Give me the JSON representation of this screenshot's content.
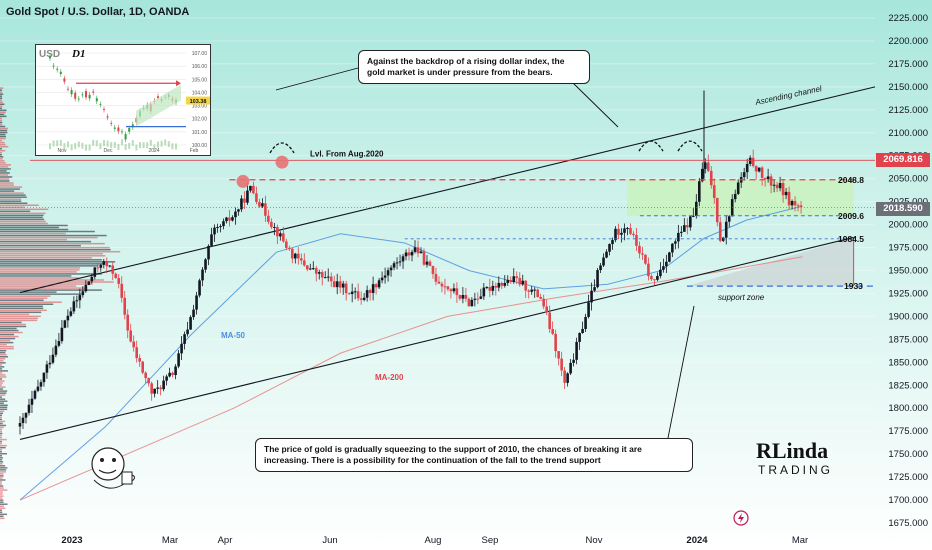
{
  "header": {
    "title": "Gold Spot / U.S. Dollar, 1D, OANDA"
  },
  "callouts": {
    "top": "Against the backdrop of a rising dollar index, the gold market is under pressure from the bears.",
    "bottom": "The price of gold is gradually squeezing to the support of 2010, the chances of breaking it are increasing. There is a possibility for the continuation of the fall to the trend support"
  },
  "badges": {
    "upper": "2069.816",
    "current": "2018.590"
  },
  "colors": {
    "up": "#131722",
    "down": "#e0434b",
    "ma50": "#4a90e2",
    "ma200": "#e88080",
    "channel": "#131722",
    "badge_upper": "#e0434b",
    "badge_current": "#6b6f78"
  },
  "inset": {
    "symbol": "USD",
    "timeframe": "D1",
    "price_ticks": [
      "107.00",
      "106.00",
      "105.00",
      "104.00",
      "103.00",
      "102.00",
      "101.00",
      "100.00"
    ],
    "time_ticks": [
      "Nov",
      "Dec",
      "2024",
      "Feb"
    ],
    "current_price": "103.38"
  },
  "logo": {
    "top": "RLinda",
    "bottom": "TRADING"
  },
  "chart_data": {
    "type": "candlestick",
    "title": "Gold Spot / U.S. Dollar, 1D, OANDA",
    "x_tick_labels": [
      "2023",
      "Mar",
      "Apr",
      "Jun",
      "Aug",
      "Sep",
      "Nov",
      "2024",
      "Mar"
    ],
    "y_tick_labels": [
      "2225.000",
      "2200.000",
      "2175.000",
      "2150.000",
      "2125.000",
      "2100.000",
      "2075.000",
      "2050.000",
      "2025.000",
      "2000.000",
      "1975.000",
      "1950.000",
      "1925.000",
      "1900.000",
      "1875.000",
      "1850.000",
      "1825.000",
      "1800.000",
      "1775.000",
      "1750.000",
      "1725.000",
      "1700.000",
      "1675.000"
    ],
    "ylim": [
      1670,
      2235
    ],
    "trajectory": [
      [
        0,
        1780
      ],
      [
        10,
        1830
      ],
      [
        22,
        1900
      ],
      [
        38,
        1960
      ],
      [
        45,
        1945
      ],
      [
        52,
        1870
      ],
      [
        62,
        1815
      ],
      [
        72,
        1840
      ],
      [
        80,
        1900
      ],
      [
        90,
        1990
      ],
      [
        100,
        2010
      ],
      [
        108,
        2040
      ],
      [
        118,
        2000
      ],
      [
        128,
        1965
      ],
      [
        140,
        1945
      ],
      [
        148,
        1935
      ],
      [
        160,
        1920
      ],
      [
        172,
        1950
      ],
      [
        185,
        1975
      ],
      [
        195,
        1940
      ],
      [
        210,
        1915
      ],
      [
        222,
        1935
      ],
      [
        232,
        1940
      ],
      [
        244,
        1920
      ],
      [
        250,
        1870
      ],
      [
        255,
        1825
      ],
      [
        262,
        1880
      ],
      [
        270,
        1945
      ],
      [
        278,
        1990
      ],
      [
        284,
        2000
      ],
      [
        290,
        1970
      ],
      [
        296,
        1935
      ],
      [
        306,
        1980
      ],
      [
        315,
        2010
      ],
      [
        320,
        2070
      ],
      [
        324,
        2040
      ],
      [
        328,
        1980
      ],
      [
        335,
        2040
      ],
      [
        342,
        2070
      ],
      [
        348,
        2050
      ],
      [
        356,
        2040
      ],
      [
        360,
        2025
      ],
      [
        366,
        2018
      ]
    ],
    "series": [
      {
        "name": "MA-50",
        "values": [
          [
            0,
            1700
          ],
          [
            40,
            1780
          ],
          [
            80,
            1880
          ],
          [
            120,
            1970
          ],
          [
            150,
            1990
          ],
          [
            180,
            1980
          ],
          [
            210,
            1950
          ],
          [
            245,
            1930
          ],
          [
            275,
            1935
          ],
          [
            300,
            1950
          ],
          [
            320,
            1985
          ],
          [
            340,
            2005
          ],
          [
            366,
            2020
          ]
        ]
      },
      {
        "name": "MA-200",
        "values": [
          [
            0,
            1700
          ],
          [
            60,
            1760
          ],
          [
            100,
            1800
          ],
          [
            150,
            1860
          ],
          [
            200,
            1900
          ],
          [
            250,
            1920
          ],
          [
            300,
            1938
          ],
          [
            330,
            1950
          ],
          [
            366,
            1965
          ]
        ]
      }
    ],
    "levels": [
      {
        "label": "Lvl. From Aug.2020",
        "value": 2070
      },
      {
        "label": "2048.8",
        "value": 2048.8
      },
      {
        "label": "2009.6",
        "value": 2009.6
      },
      {
        "label": "1984.5",
        "value": 1984.5
      },
      {
        "label": "1933",
        "value": 1933
      }
    ],
    "annotations": [
      "Ascending channel",
      "support zone",
      "MA-50",
      "MA-200"
    ],
    "zones": [
      {
        "from": 2009.6,
        "to": 2048.8,
        "color": "#c9f2b3"
      }
    ]
  }
}
